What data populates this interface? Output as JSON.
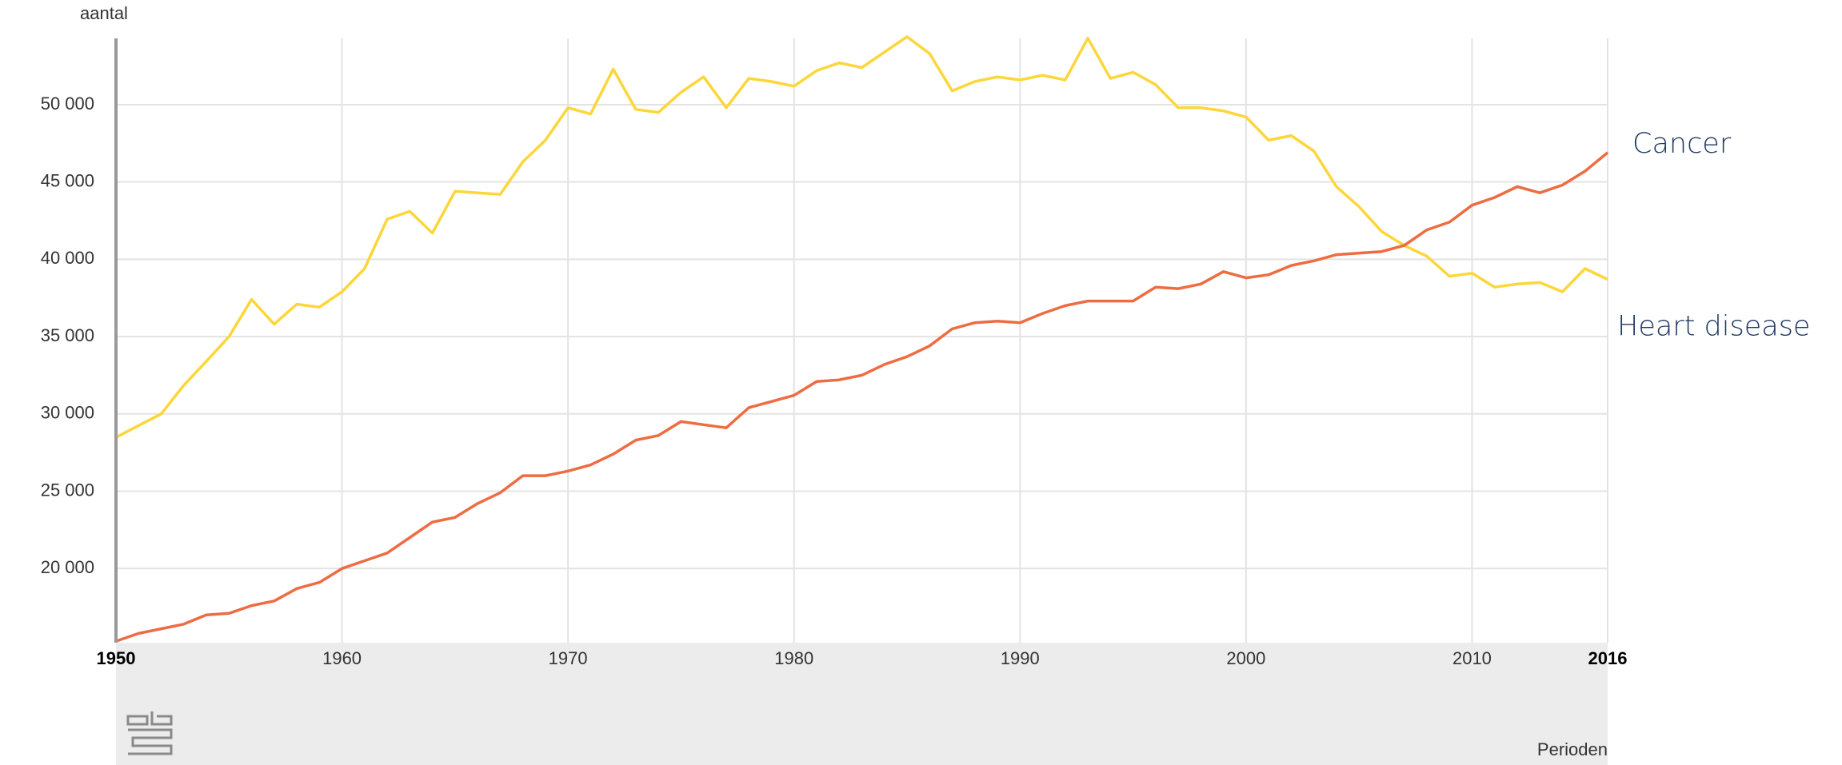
{
  "chart_data": {
    "type": "line",
    "y_label": "aantal",
    "x_label": "Perioden",
    "x": [
      1950,
      1951,
      1952,
      1953,
      1954,
      1955,
      1956,
      1957,
      1958,
      1959,
      1960,
      1961,
      1962,
      1963,
      1964,
      1965,
      1966,
      1967,
      1968,
      1969,
      1970,
      1971,
      1972,
      1973,
      1974,
      1975,
      1976,
      1977,
      1978,
      1979,
      1980,
      1981,
      1982,
      1983,
      1984,
      1985,
      1986,
      1987,
      1988,
      1989,
      1990,
      1991,
      1992,
      1993,
      1994,
      1995,
      1996,
      1997,
      1998,
      1999,
      2000,
      2001,
      2002,
      2003,
      2004,
      2005,
      2006,
      2007,
      2008,
      2009,
      2010,
      2011,
      2012,
      2013,
      2014,
      2015,
      2016
    ],
    "series": [
      {
        "name": "Heart disease",
        "color": "#fdd63a",
        "values": [
          28480,
          29250,
          30000,
          31850,
          33400,
          35000,
          37400,
          35800,
          37100,
          36900,
          37900,
          39400,
          42600,
          43100,
          41700,
          44400,
          44300,
          44200,
          46300,
          47700,
          49800,
          49400,
          52300,
          49700,
          49500,
          50800,
          51800,
          49800,
          51700,
          51500,
          51200,
          52200,
          52700,
          52400,
          53400,
          54400,
          53300,
          50900,
          51500,
          51800,
          51600,
          51900,
          51600,
          54300,
          51700,
          52100,
          51300,
          49800,
          49800,
          49600,
          49200,
          47700,
          48000,
          47000,
          44700,
          43400,
          41800,
          40900,
          40200,
          38900,
          39100,
          38200,
          38400,
          38500,
          37900,
          39400,
          38700
        ]
      },
      {
        "name": "Cancer",
        "color": "#ee6c42",
        "values": [
          15300,
          15800,
          16100,
          16400,
          17000,
          17100,
          17600,
          17900,
          18700,
          19100,
          20000,
          20500,
          21000,
          22000,
          23000,
          23300,
          24200,
          24900,
          26000,
          26000,
          26300,
          26700,
          27400,
          28300,
          28600,
          29500,
          29300,
          29100,
          30400,
          30800,
          31200,
          32100,
          32200,
          32500,
          33200,
          33700,
          34400,
          35500,
          35900,
          36000,
          35900,
          36500,
          37000,
          37300,
          37300,
          37300,
          38200,
          38100,
          38400,
          39200,
          38800,
          39000,
          39600,
          39900,
          40300,
          40400,
          40500,
          40900,
          41900,
          42400,
          43500,
          44000,
          44700,
          44300,
          44800,
          45700,
          46900
        ]
      }
    ],
    "xlim": [
      1950,
      2016
    ],
    "xticks": [
      1950,
      1960,
      1970,
      1980,
      1990,
      2000,
      2010,
      2016
    ],
    "ylim": [
      15200,
      54600
    ],
    "yticks": [
      {
        "value": 20000,
        "label": "20 000"
      },
      {
        "value": 25000,
        "label": "25 000"
      },
      {
        "value": 30000,
        "label": "30 000"
      },
      {
        "value": 35000,
        "label": "35 000"
      },
      {
        "value": 40000,
        "label": "40 000"
      },
      {
        "value": 45000,
        "label": "45 000"
      },
      {
        "value": 50000,
        "label": "50 000"
      }
    ],
    "grid": true
  }
}
